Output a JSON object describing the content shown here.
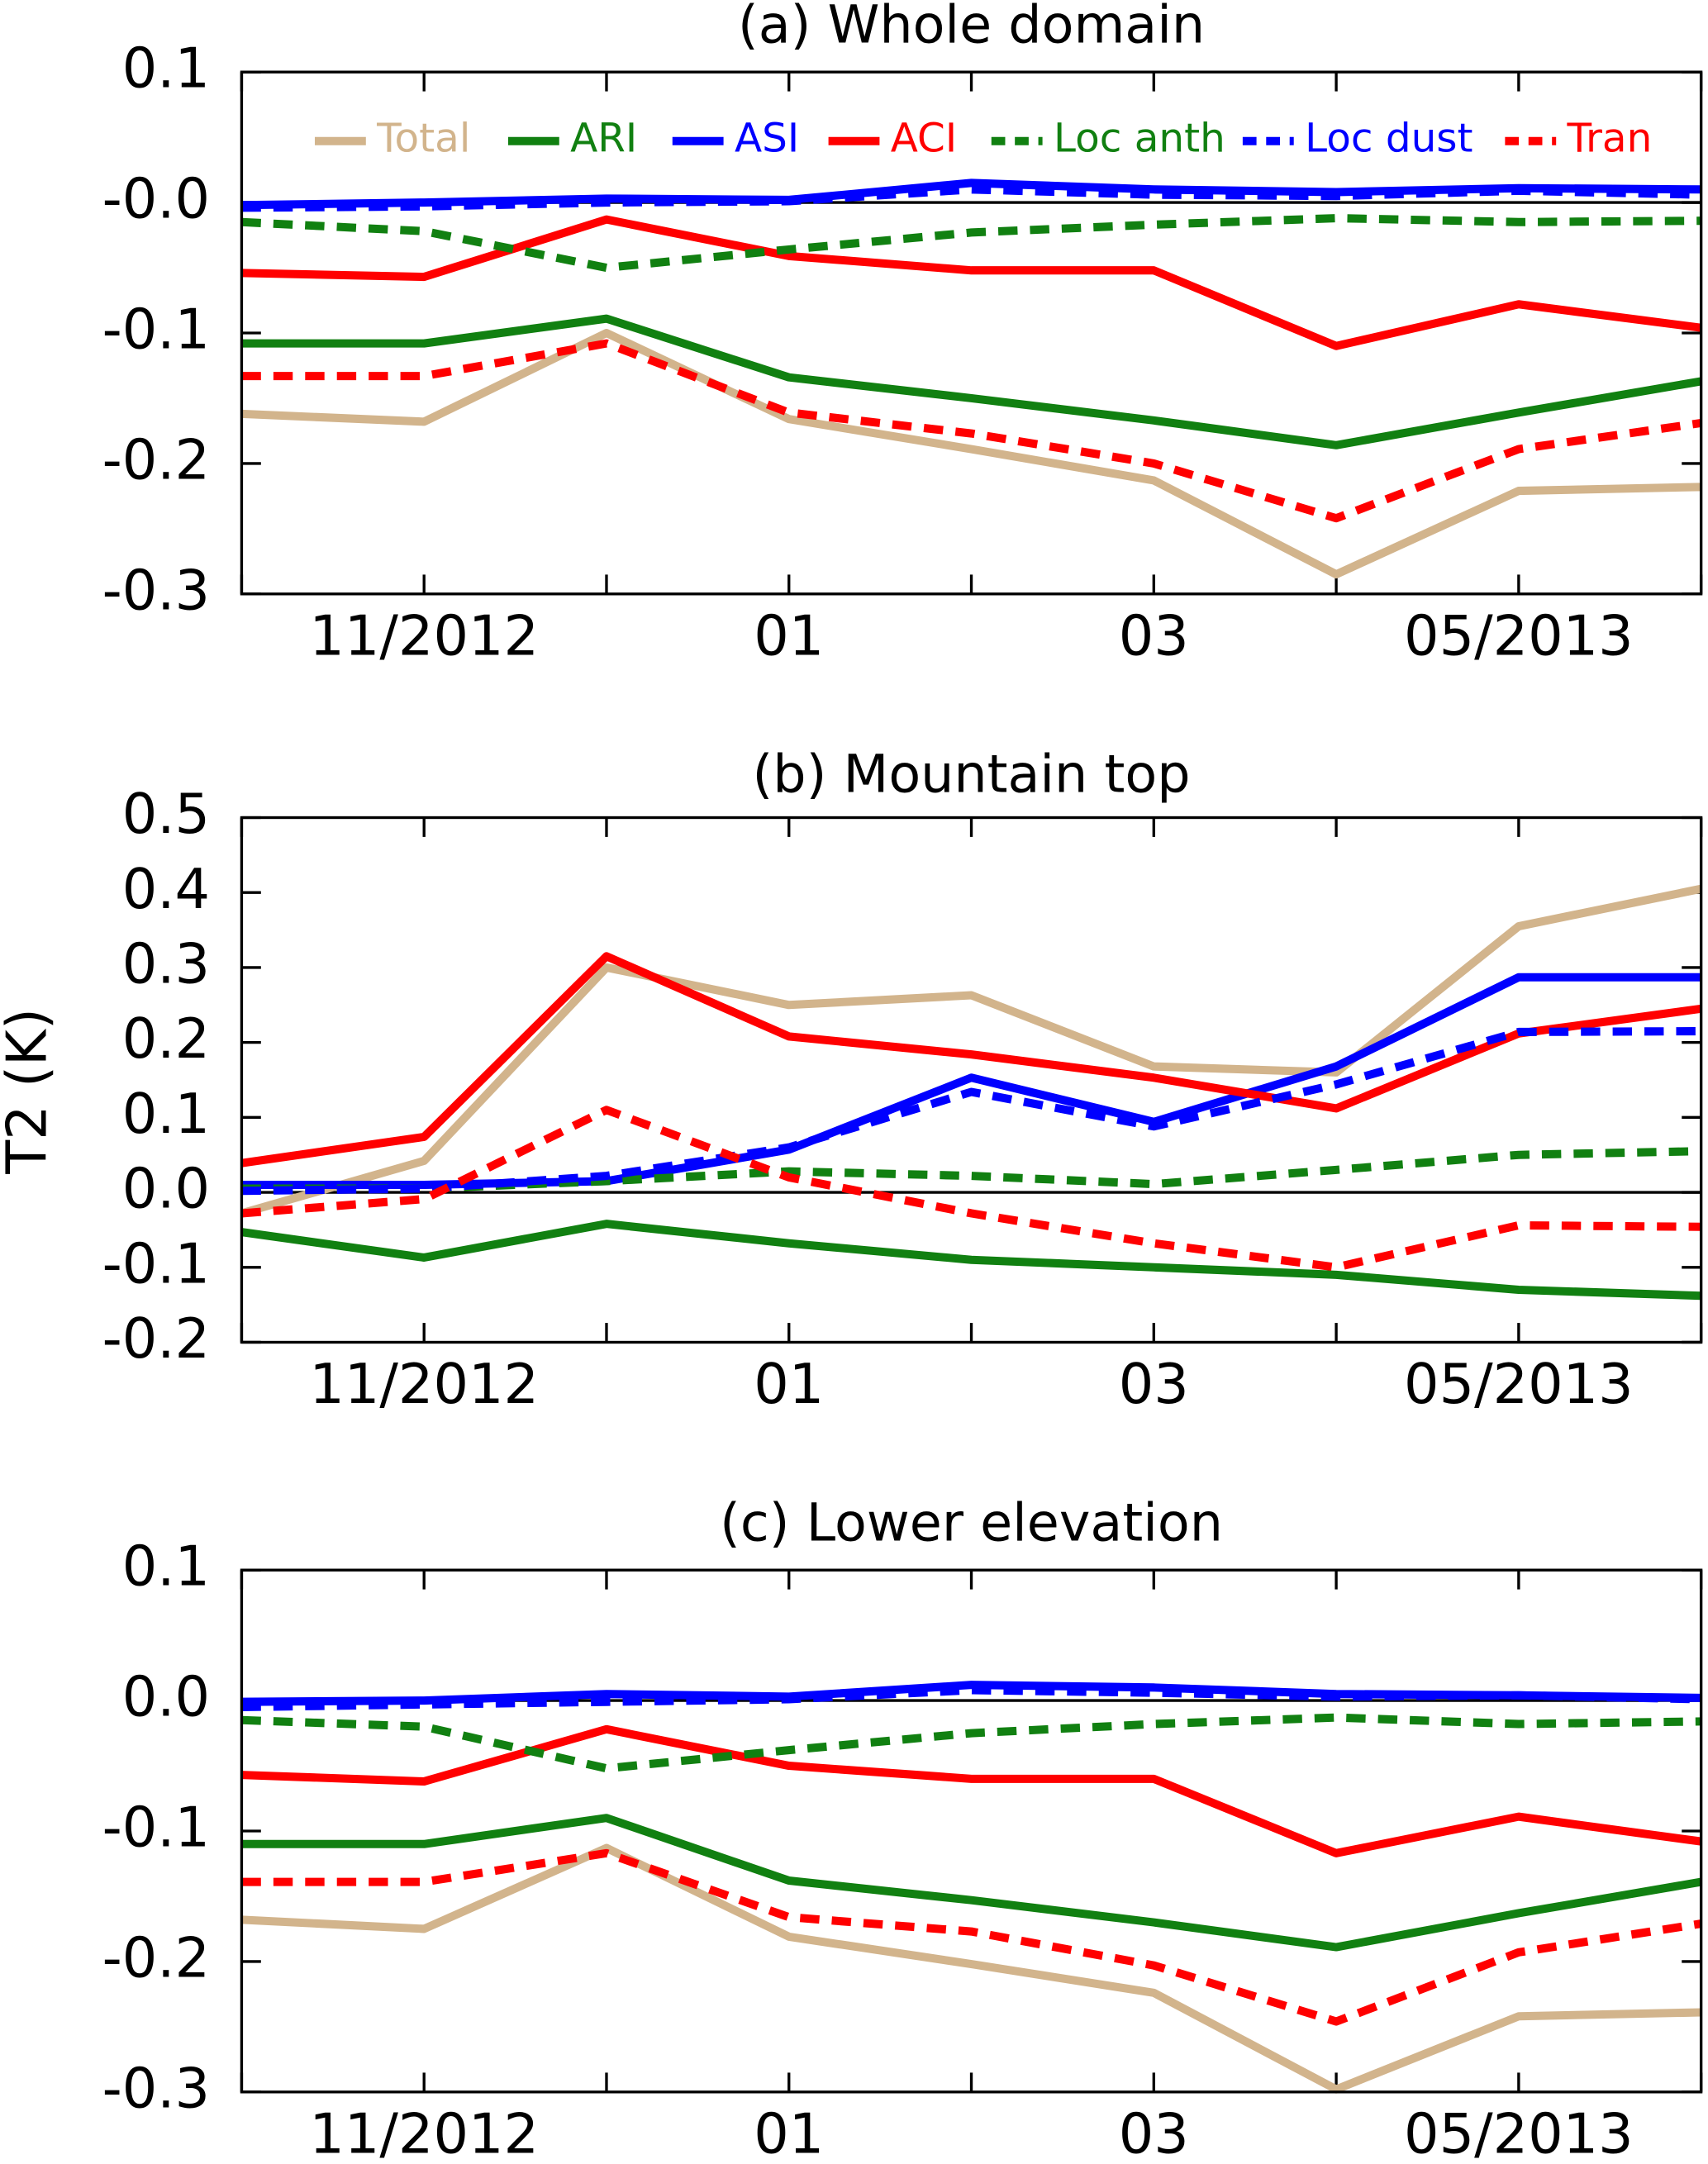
{
  "y_label": "T2 (K)",
  "chart_data": [
    {
      "type": "line",
      "title": "(a) Whole domain",
      "legend": "top",
      "categories": [
        null,
        "11/2012",
        null,
        "01",
        null,
        "03",
        null,
        "05/2013",
        null
      ],
      "ylim": [
        -0.3,
        0.1
      ],
      "yticks": [
        0.1,
        {
          "value": 0,
          "label": "-0.0"
        },
        -0.1,
        -0.2,
        -0.3
      ],
      "series": [
        {
          "name": "Total",
          "color": "#d2b48c",
          "dashed": false,
          "values": [
            -0.162,
            -0.168,
            -0.1,
            -0.166,
            -0.189,
            -0.213,
            -0.285,
            -0.221,
            -0.218
          ]
        },
        {
          "name": "ARI",
          "color": "#118011",
          "dashed": false,
          "values": [
            -0.108,
            -0.108,
            -0.089,
            -0.134,
            -0.15,
            -0.167,
            -0.186,
            -0.161,
            -0.137
          ]
        },
        {
          "name": "ASI",
          "color": "#0000ff",
          "dashed": false,
          "values": [
            -0.002,
            0.0,
            0.003,
            0.002,
            0.015,
            0.01,
            0.008,
            0.011,
            0.01
          ]
        },
        {
          "name": "ACI",
          "color": "#ff0000",
          "dashed": false,
          "values": [
            -0.054,
            -0.057,
            -0.013,
            -0.041,
            -0.052,
            -0.052,
            -0.11,
            -0.078,
            -0.096
          ]
        },
        {
          "name": "Loc anth",
          "color": "#118011",
          "dashed": true,
          "values": [
            -0.015,
            -0.022,
            -0.05,
            -0.036,
            -0.023,
            -0.017,
            -0.012,
            -0.015,
            -0.014
          ]
        },
        {
          "name": "Loc dust",
          "color": "#0000ff",
          "dashed": true,
          "values": [
            -0.004,
            -0.003,
            0.0,
            0.001,
            0.01,
            0.006,
            0.005,
            0.009,
            0.006
          ]
        },
        {
          "name": "Tran",
          "color": "#ff0000",
          "dashed": true,
          "values": [
            -0.133,
            -0.133,
            -0.108,
            -0.161,
            -0.177,
            -0.2,
            -0.242,
            -0.189,
            -0.169
          ]
        }
      ]
    },
    {
      "type": "line",
      "title": "(b) Mountain top",
      "categories": [
        null,
        "11/2012",
        null,
        "01",
        null,
        "03",
        null,
        "05/2013",
        null
      ],
      "ylim": [
        -0.2,
        0.5
      ],
      "yticks": [
        0.5,
        0.4,
        0.3,
        0.2,
        0.1,
        {
          "value": 0,
          "label": "0.0"
        },
        -0.1,
        -0.2
      ],
      "series": [
        {
          "color": "#d2b48c",
          "dashed": false,
          "values": [
            -0.028,
            0.042,
            0.3,
            0.25,
            0.263,
            0.168,
            0.16,
            0.355,
            0.405
          ]
        },
        {
          "color": "#118011",
          "dashed": false,
          "values": [
            -0.053,
            -0.087,
            -0.042,
            -0.068,
            -0.09,
            -0.1,
            -0.11,
            -0.13,
            -0.138
          ]
        },
        {
          "color": "#0000ff",
          "dashed": false,
          "values": [
            0.01,
            0.01,
            0.015,
            0.057,
            0.153,
            0.094,
            0.168,
            0.287,
            0.287
          ]
        },
        {
          "color": "#ff0000",
          "dashed": false,
          "values": [
            0.039,
            0.074,
            0.315,
            0.208,
            0.184,
            0.153,
            0.112,
            0.212,
            0.245
          ]
        },
        {
          "color": "#118011",
          "dashed": true,
          "values": [
            0.005,
            0.005,
            0.015,
            0.028,
            0.022,
            0.011,
            0.03,
            0.05,
            0.055
          ]
        },
        {
          "color": "#0000ff",
          "dashed": true,
          "values": [
            0.002,
            0.005,
            0.022,
            0.06,
            0.134,
            0.088,
            0.144,
            0.214,
            0.215
          ]
        },
        {
          "color": "#ff0000",
          "dashed": true,
          "values": [
            -0.028,
            -0.009,
            0.11,
            0.02,
            -0.028,
            -0.068,
            -0.1,
            -0.044,
            -0.046
          ]
        }
      ]
    },
    {
      "type": "line",
      "title": "(c) Lower elevation",
      "categories": [
        null,
        "11/2012",
        null,
        "01",
        null,
        "03",
        null,
        "05/2013",
        null
      ],
      "ylim": [
        -0.3,
        0.1
      ],
      "yticks": [
        0.1,
        {
          "value": 0,
          "label": "0.0"
        },
        -0.1,
        -0.2,
        -0.3
      ],
      "series": [
        {
          "color": "#d2b48c",
          "dashed": false,
          "values": [
            -0.168,
            -0.175,
            -0.113,
            -0.181,
            -0.202,
            -0.224,
            -0.298,
            -0.242,
            -0.239
          ]
        },
        {
          "color": "#118011",
          "dashed": false,
          "values": [
            -0.11,
            -0.11,
            -0.09,
            -0.138,
            -0.153,
            -0.17,
            -0.189,
            -0.163,
            -0.139
          ]
        },
        {
          "color": "#0000ff",
          "dashed": false,
          "values": [
            -0.001,
            0.0,
            0.005,
            0.003,
            0.012,
            0.01,
            0.005,
            0.004,
            0.002
          ]
        },
        {
          "color": "#ff0000",
          "dashed": false,
          "values": [
            -0.057,
            -0.062,
            -0.022,
            -0.05,
            -0.06,
            -0.06,
            -0.117,
            -0.089,
            -0.108
          ]
        },
        {
          "color": "#118011",
          "dashed": true,
          "values": [
            -0.015,
            -0.02,
            -0.052,
            -0.038,
            -0.025,
            -0.018,
            -0.013,
            -0.018,
            -0.016
          ]
        },
        {
          "color": "#0000ff",
          "dashed": true,
          "values": [
            -0.005,
            -0.003,
            -0.001,
            0.001,
            0.008,
            0.006,
            0.003,
            0.004,
            0.001
          ]
        },
        {
          "color": "#ff0000",
          "dashed": true,
          "values": [
            -0.139,
            -0.139,
            -0.117,
            -0.166,
            -0.177,
            -0.203,
            -0.246,
            -0.193,
            -0.171
          ]
        }
      ]
    }
  ]
}
